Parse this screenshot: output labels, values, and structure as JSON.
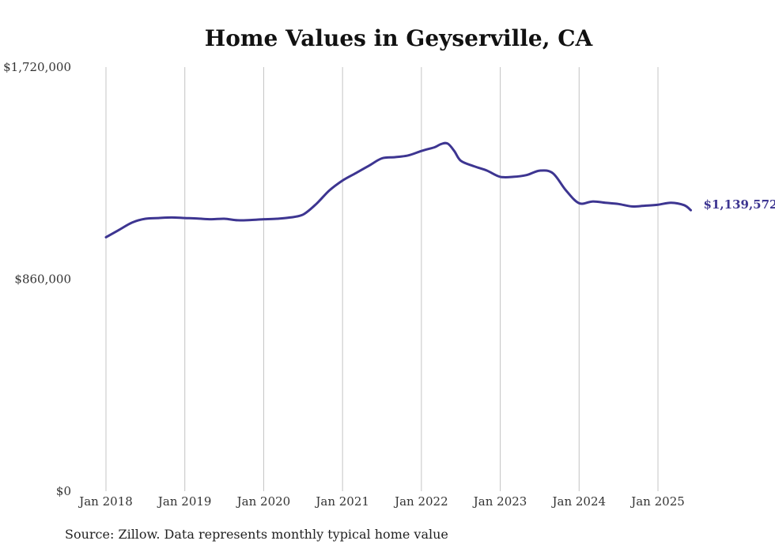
{
  "chart_data": {
    "type": "line",
    "title": "Home Values in Geyserville, CA",
    "xlabel": "",
    "ylabel": "",
    "x_ticks": [
      "Jan 2018",
      "Jan 2019",
      "Jan 2020",
      "Jan 2021",
      "Jan 2022",
      "Jan 2023",
      "Jan 2024",
      "Jan 2025"
    ],
    "y_ticks": [
      "$0",
      "$860,000",
      "$1,720,000"
    ],
    "y_tick_values": [
      0,
      860000,
      1720000
    ],
    "ylim": [
      0,
      1720000
    ],
    "xlim": [
      "2018-01",
      "2025-06"
    ],
    "grid": "vertical",
    "legend": "none",
    "end_label": "$1,139,572",
    "line_color": "#3d3591",
    "series": [
      {
        "name": "",
        "x": [
          "2018-01",
          "2018-03",
          "2018-05",
          "2018-07",
          "2018-09",
          "2018-11",
          "2019-01",
          "2019-03",
          "2019-05",
          "2019-07",
          "2019-09",
          "2019-11",
          "2020-01",
          "2020-03",
          "2020-05",
          "2020-07",
          "2020-09",
          "2020-11",
          "2021-01",
          "2021-03",
          "2021-05",
          "2021-07",
          "2021-09",
          "2021-11",
          "2022-01",
          "2022-03",
          "2022-04",
          "2022-05",
          "2022-06",
          "2022-07",
          "2022-09",
          "2022-11",
          "2023-01",
          "2023-03",
          "2023-05",
          "2023-07",
          "2023-09",
          "2023-11",
          "2024-01",
          "2024-03",
          "2024-05",
          "2024-07",
          "2024-09",
          "2024-11",
          "2025-01",
          "2025-03",
          "2025-05",
          "2025-06"
        ],
        "values": [
          1030000,
          1060000,
          1090000,
          1105000,
          1108000,
          1110000,
          1108000,
          1106000,
          1103000,
          1105000,
          1099000,
          1100000,
          1103000,
          1105000,
          1110000,
          1122000,
          1165000,
          1220000,
          1260000,
          1290000,
          1320000,
          1350000,
          1355000,
          1362000,
          1380000,
          1395000,
          1408000,
          1410000,
          1380000,
          1340000,
          1318000,
          1300000,
          1275000,
          1275000,
          1282000,
          1300000,
          1290000,
          1220000,
          1168000,
          1175000,
          1170000,
          1165000,
          1155000,
          1158000,
          1162000,
          1170000,
          1160000,
          1139572
        ]
      }
    ]
  },
  "source": "Source: Zillow. Data represents monthly typical home value"
}
